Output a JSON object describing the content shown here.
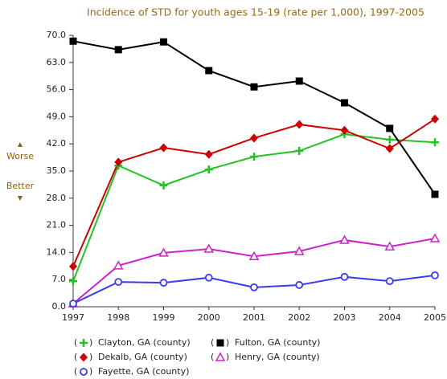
{
  "chart_data": {
    "type": "line",
    "title": "Incidence of STD for youth ages 15-19 (rate per 1,000), 1997-2005",
    "annotations": [
      "Worse",
      "Better"
    ],
    "categories": [
      "1997",
      "1998",
      "1999",
      "2000",
      "2001",
      "2002",
      "2003",
      "2004",
      "2005"
    ],
    "series": [
      {
        "name": "Clayton, GA (county)",
        "color": "#22c322",
        "marker": "plus",
        "values": [
          6.6,
          36.4,
          31.3,
          35.4,
          38.7,
          40.2,
          44.5,
          43.1,
          42.4
        ]
      },
      {
        "name": "Fulton, GA (county)",
        "color": "#000000",
        "marker": "square",
        "values": [
          68.5,
          66.3,
          68.3,
          60.9,
          56.7,
          58.2,
          52.6,
          46.0,
          29.0
        ]
      },
      {
        "name": "Dekalb, GA (county)",
        "color": "#cc0000",
        "marker": "diamond",
        "values": [
          10.4,
          37.3,
          41.0,
          39.3,
          43.5,
          47.0,
          45.5,
          40.8,
          48.4
        ]
      },
      {
        "name": "Henry, GA (county)",
        "color": "#cc22cc",
        "marker": "triangle",
        "values": [
          0.8,
          10.6,
          13.9,
          14.9,
          13.0,
          14.3,
          17.2,
          15.5,
          17.6
        ]
      },
      {
        "name": "Fayette, GA (county)",
        "color": "#3a3aee",
        "marker": "circle",
        "values": [
          0.8,
          6.4,
          6.2,
          7.5,
          5.0,
          5.6,
          7.7,
          6.6,
          8.1
        ]
      }
    ],
    "ylim": [
      0,
      70
    ],
    "yticks": [
      {
        "value": 0,
        "label": "0.0"
      },
      {
        "value": 7,
        "label": "7.0"
      },
      {
        "value": 14,
        "label": "14.0"
      },
      {
        "value": 21,
        "label": "21.0"
      },
      {
        "value": 28,
        "label": "28.0"
      },
      {
        "value": 35,
        "label": "35.0"
      },
      {
        "value": 42,
        "label": "42.0"
      },
      {
        "value": 49,
        "label": "49.0"
      },
      {
        "value": 56,
        "label": "56.0"
      },
      {
        "value": 63,
        "label": "63.0"
      },
      {
        "value": 70,
        "label": "70.0"
      }
    ],
    "grid": false
  }
}
